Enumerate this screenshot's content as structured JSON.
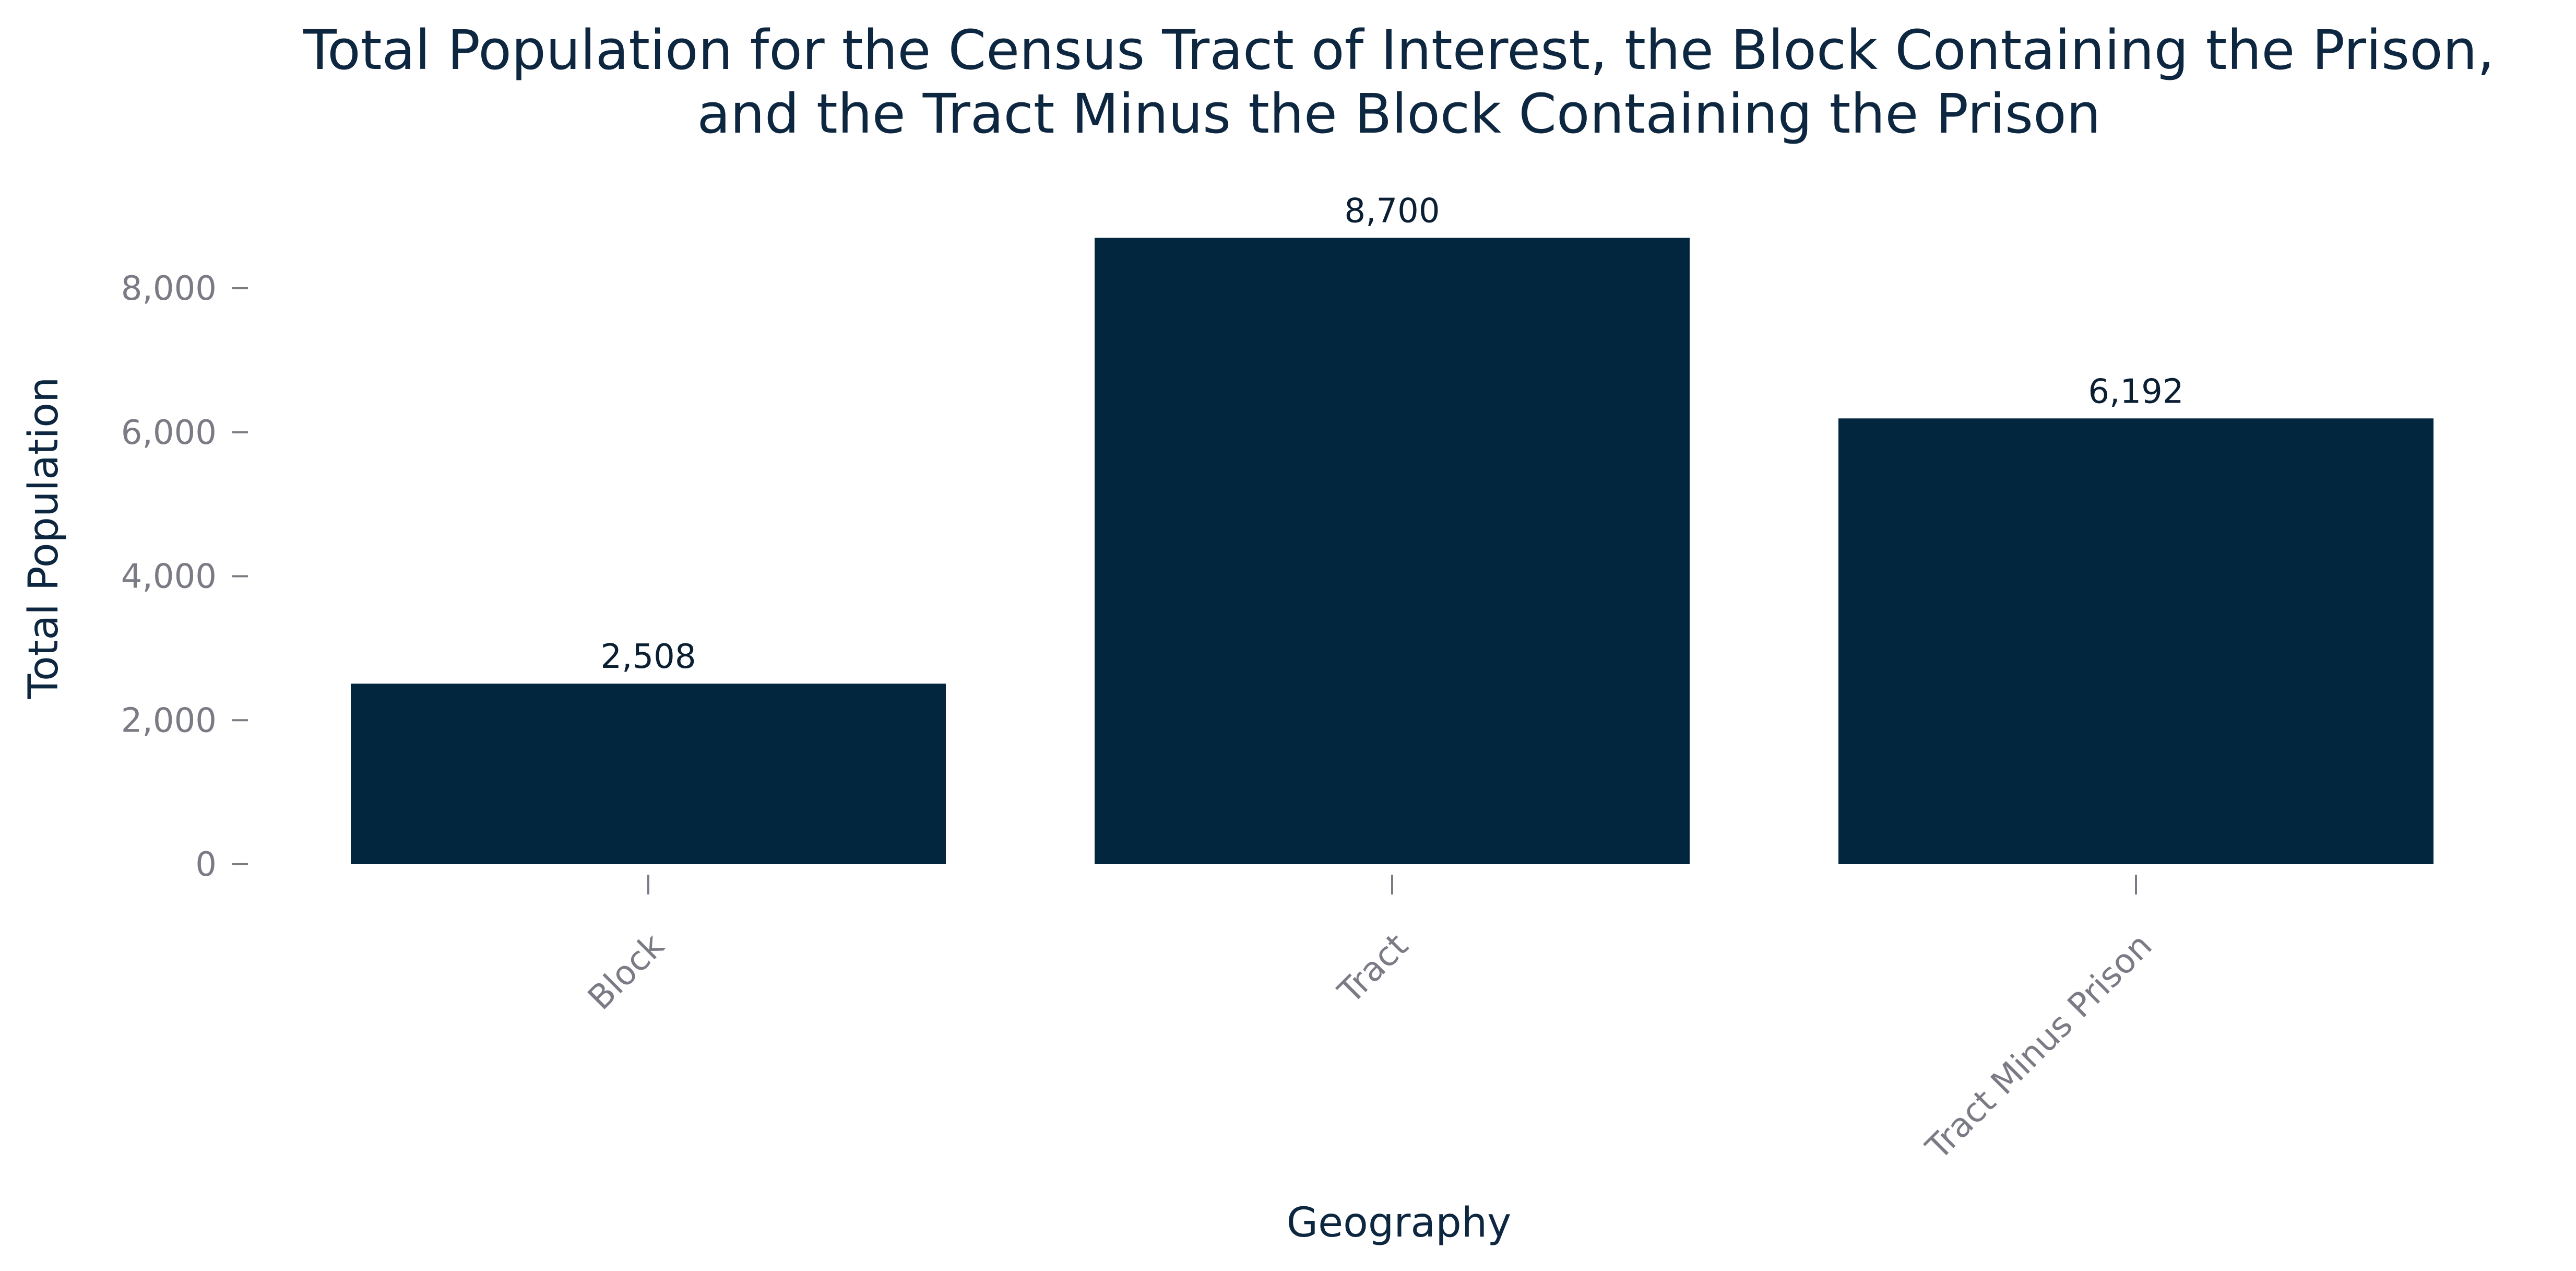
{
  "chart_data": {
    "type": "bar",
    "title_lines": [
      "Total Population for the Census Tract of Interest, the Block Containing the Prison,",
      "and the Tract Minus the Block Containing the Prison"
    ],
    "xlabel": "Geography",
    "ylabel": "Total Population",
    "categories": [
      "Block",
      "Tract",
      "Tract Minus Prison"
    ],
    "values": [
      2508,
      8700,
      6192
    ],
    "data_labels": [
      "2,508",
      "8,700",
      "6,192"
    ],
    "ylim": [
      0,
      9000
    ],
    "yticks": [
      0,
      2000,
      4000,
      6000,
      8000
    ],
    "ytick_labels": [
      "0",
      "2,000",
      "4,000",
      "6,000",
      "8,000"
    ],
    "bar_color": "#02263d",
    "grid": false,
    "legend": "none"
  }
}
